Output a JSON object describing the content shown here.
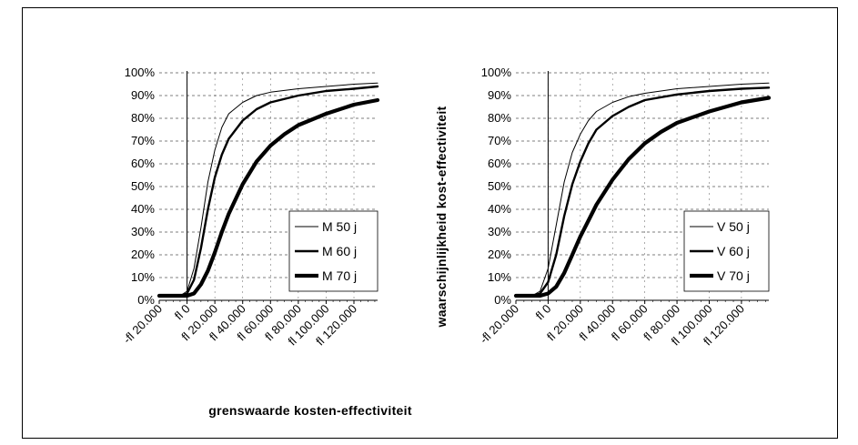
{
  "chart_data": [
    {
      "type": "line",
      "title": "",
      "xlabel": "grenswaarde kosten-effectiviteit",
      "ylabel": "",
      "x_tick_values": [
        -20000,
        0,
        20000,
        40000,
        60000,
        80000,
        100000,
        120000
      ],
      "x_tick_labels": [
        "-fl 20.000",
        "fl 0",
        "fl 20.000",
        "fl 40.000",
        "fl 60.000",
        "fl 80.000",
        "fl 100.000",
        "fl 120.000"
      ],
      "y_tick_values": [
        0,
        10,
        20,
        30,
        40,
        50,
        60,
        70,
        80,
        90,
        100
      ],
      "y_tick_labels": [
        "0%",
        "10%",
        "20%",
        "30%",
        "40%",
        "50%",
        "60%",
        "70%",
        "80%",
        "90%",
        "100%"
      ],
      "xlim": [
        -20000,
        137000
      ],
      "ylim": [
        0,
        100
      ],
      "grid": true,
      "legend_position": "bottom-right",
      "series": [
        {
          "name": "M 50 j",
          "weight": "thin",
          "x": [
            -20000,
            -5000,
            0,
            5000,
            10000,
            15000,
            20000,
            25000,
            30000,
            40000,
            50000,
            60000,
            80000,
            100000,
            120000,
            137000
          ],
          "y": [
            2,
            2,
            4,
            14,
            32,
            52,
            66,
            76,
            82,
            87,
            90,
            91.5,
            93,
            94,
            95,
            95.5
          ]
        },
        {
          "name": "M 60 j",
          "weight": "medium",
          "x": [
            -20000,
            -5000,
            0,
            5000,
            10000,
            15000,
            20000,
            25000,
            30000,
            40000,
            50000,
            60000,
            80000,
            100000,
            120000,
            137000
          ],
          "y": [
            2,
            2,
            3,
            9,
            23,
            40,
            54,
            64,
            71,
            79,
            84,
            87,
            90,
            92,
            93,
            94
          ]
        },
        {
          "name": "M 70 j",
          "weight": "thick",
          "x": [
            -20000,
            0,
            5000,
            10000,
            15000,
            20000,
            25000,
            30000,
            40000,
            50000,
            60000,
            70000,
            80000,
            100000,
            120000,
            137000
          ],
          "y": [
            2,
            2,
            3,
            7,
            13,
            21,
            30,
            38,
            51,
            61,
            68,
            73,
            77,
            82,
            86,
            88
          ]
        }
      ]
    },
    {
      "type": "line",
      "title": "",
      "xlabel": "",
      "ylabel": "waarschijnlijkheid  kost-effectiviteit",
      "x_tick_values": [
        -20000,
        0,
        20000,
        40000,
        60000,
        80000,
        100000,
        120000
      ],
      "x_tick_labels": [
        "-fl 20.000",
        "fl 0",
        "fl 20.000",
        "fl 40.000",
        "fl 60.000",
        "fl 80.000",
        "fl 100.000",
        "fl 120.000"
      ],
      "y_tick_values": [
        0,
        10,
        20,
        30,
        40,
        50,
        60,
        70,
        80,
        90,
        100
      ],
      "y_tick_labels": [
        "0%",
        "10%",
        "20%",
        "30%",
        "40%",
        "50%",
        "60%",
        "70%",
        "80%",
        "90%",
        "100%"
      ],
      "xlim": [
        -20000,
        137000
      ],
      "ylim": [
        0,
        100
      ],
      "grid": true,
      "legend_position": "bottom-right",
      "series": [
        {
          "name": "V 50 j",
          "weight": "thin",
          "x": [
            -20000,
            -10000,
            -5000,
            0,
            5000,
            10000,
            15000,
            20000,
            25000,
            30000,
            40000,
            50000,
            60000,
            80000,
            100000,
            120000,
            137000
          ],
          "y": [
            2,
            2,
            4,
            14,
            33,
            52,
            65,
            73,
            79,
            83,
            87,
            89.5,
            91,
            93,
            94,
            95,
            95.5
          ]
        },
        {
          "name": "V 60 j",
          "weight": "medium",
          "x": [
            -20000,
            -10000,
            -5000,
            0,
            5000,
            10000,
            15000,
            20000,
            25000,
            30000,
            40000,
            50000,
            60000,
            80000,
            100000,
            120000,
            137000
          ],
          "y": [
            2,
            2,
            3,
            8,
            20,
            37,
            51,
            61,
            69,
            75,
            81,
            85,
            88,
            90.5,
            92,
            93,
            93.5
          ]
        },
        {
          "name": "V 70 j",
          "weight": "thick",
          "x": [
            -20000,
            -5000,
            0,
            5000,
            10000,
            15000,
            20000,
            25000,
            30000,
            40000,
            50000,
            60000,
            70000,
            80000,
            100000,
            120000,
            137000
          ],
          "y": [
            2,
            2,
            3,
            6,
            12,
            20,
            28,
            35,
            42,
            53,
            62,
            69,
            74,
            78,
            83,
            87,
            89
          ]
        }
      ]
    }
  ]
}
